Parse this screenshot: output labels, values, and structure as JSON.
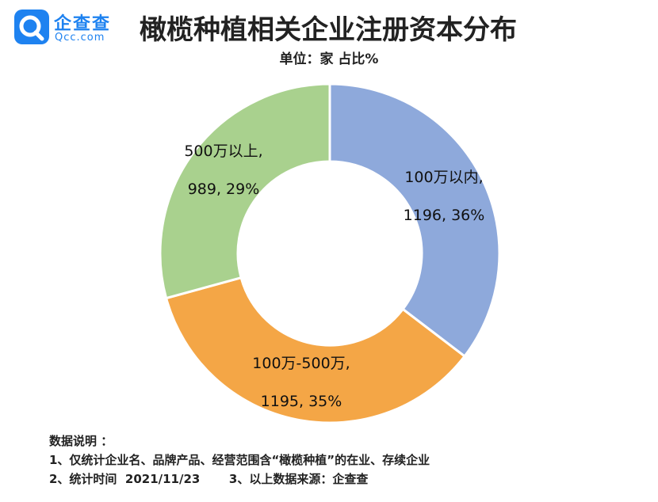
{
  "brand": {
    "name_cn": "企查查",
    "name_en": "Qcc.com",
    "color": "#1e82f0"
  },
  "header": {
    "title": "橄榄种植相关企业注册资本分布",
    "unit": "单位：家  占比%"
  },
  "chart_data": {
    "type": "pie",
    "donut": true,
    "title": "橄榄种植相关企业注册资本分布",
    "unit": "单位：家  占比%",
    "slices": [
      {
        "label": "100万以内,",
        "value": 1196,
        "percent": 36,
        "value_label": "1196, 36%",
        "color": "#8ea9db"
      },
      {
        "label": "100万-500万,",
        "value": 1195,
        "percent": 35,
        "value_label": "1195, 35%",
        "color": "#f4a646"
      },
      {
        "label": "500万以上,",
        "value": 989,
        "percent": 29,
        "value_label": "989, 29%",
        "color": "#a9d18e"
      }
    ]
  },
  "footer": {
    "heading": "数据说明 ：",
    "note1": "1、仅统计企业名、品牌产品、经营范围含“橄榄种植”的在业、存续企业",
    "note2": "2、统计时间  2021/11/23       3、以上数据来源：企查查"
  }
}
